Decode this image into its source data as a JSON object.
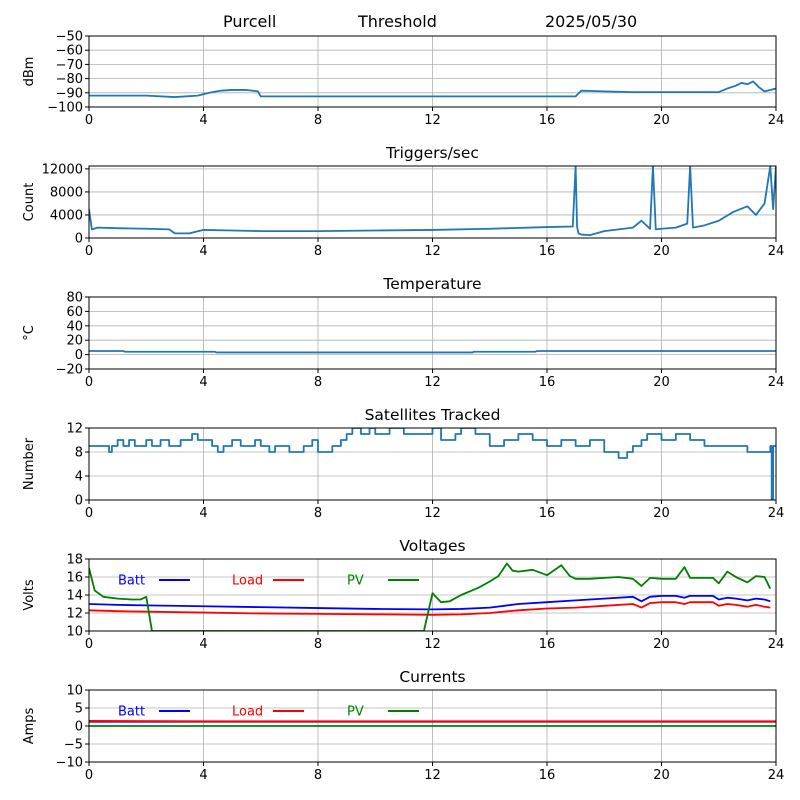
{
  "header": {
    "station": "Purcell",
    "label": "Threshold",
    "date": "2025/05/30"
  },
  "colors": {
    "default_series": "#1f77b4",
    "batt": "#0000ff",
    "load": "#ff0000",
    "pv": "#008000",
    "grid": "#b0b0b0"
  },
  "chart_data": [
    {
      "id": "threshold",
      "type": "line",
      "title": "",
      "xlabel": "",
      "ylabel": "dBm",
      "xlim": [
        0,
        24
      ],
      "ylim": [
        -100,
        -50
      ],
      "xticks": [
        0,
        4,
        8,
        12,
        16,
        20,
        24
      ],
      "yticks": [
        -100,
        -90,
        -80,
        -70,
        -60,
        -50
      ],
      "grid": true,
      "series": [
        {
          "color_key": "default_series",
          "x": [
            0,
            1,
            2,
            3,
            3.8,
            4.2,
            4.6,
            5.0,
            5.5,
            5.9,
            6.0,
            8,
            10,
            12,
            14,
            16.5,
            17.0,
            17.2,
            18,
            19,
            20,
            21,
            22.0,
            22.3,
            22.6,
            22.8,
            23.0,
            23.2,
            23.4,
            23.6,
            23.8,
            24
          ],
          "y": [
            -92,
            -92,
            -92,
            -93,
            -92,
            -90,
            -88.5,
            -88,
            -88,
            -89,
            -92.5,
            -92.5,
            -92.5,
            -92.5,
            -92.5,
            -92.5,
            -92.5,
            -88.5,
            -89,
            -89.5,
            -89.5,
            -89.5,
            -89.5,
            -87,
            -85,
            -83,
            -84,
            -82,
            -86,
            -89,
            -88,
            -87
          ]
        }
      ]
    },
    {
      "id": "triggers",
      "type": "line",
      "title": "Triggers/sec",
      "xlabel": "",
      "ylabel": "Count",
      "xlim": [
        0,
        24
      ],
      "ylim": [
        0,
        12500
      ],
      "xticks": [
        0,
        4,
        8,
        12,
        16,
        20,
        24
      ],
      "yticks": [
        0,
        4000,
        8000,
        12000
      ],
      "grid": true,
      "series": [
        {
          "color_key": "default_series",
          "x": [
            0,
            0.1,
            0.3,
            1.0,
            2.0,
            2.8,
            3.0,
            3.5,
            4.0,
            5.0,
            6.0,
            8.0,
            10.0,
            12.0,
            14.0,
            16.0,
            16.9,
            17.0,
            17.05,
            17.1,
            17.2,
            17.5,
            18.0,
            18.5,
            19.0,
            19.3,
            19.6,
            19.7,
            19.8,
            20.0,
            20.5,
            20.9,
            21.0,
            21.1,
            21.5,
            22.0,
            22.5,
            23.0,
            23.3,
            23.6,
            23.8,
            23.9,
            24
          ],
          "y": [
            5000,
            1500,
            1800,
            1700,
            1600,
            1500,
            800,
            800,
            1400,
            1300,
            1200,
            1200,
            1300,
            1400,
            1600,
            1900,
            2000,
            12500,
            2000,
            800,
            600,
            500,
            1200,
            1500,
            1800,
            3000,
            1600,
            12500,
            1500,
            1600,
            1800,
            2500,
            12500,
            1800,
            2200,
            3000,
            4500,
            5500,
            4000,
            6000,
            12500,
            5000,
            12500
          ]
        }
      ]
    },
    {
      "id": "temperature",
      "type": "line",
      "title": "Temperature",
      "xlabel": "",
      "ylabel": "°C",
      "xlim": [
        0,
        24
      ],
      "ylim": [
        -20,
        80
      ],
      "xticks": [
        0,
        4,
        8,
        12,
        16,
        20,
        24
      ],
      "yticks": [
        -20,
        0,
        20,
        40,
        60,
        80
      ],
      "grid": true,
      "series": [
        {
          "color_key": "default_series",
          "x": [
            0,
            1.2,
            1.25,
            4.4,
            4.45,
            13.4,
            13.45,
            15.6,
            15.65,
            24
          ],
          "y": [
            5,
            5,
            4,
            4,
            3,
            3,
            4,
            4,
            5,
            5
          ]
        }
      ]
    },
    {
      "id": "satellites",
      "type": "line",
      "title": "Satellites Tracked",
      "xlabel": "",
      "ylabel": "Number",
      "xlim": [
        0,
        24
      ],
      "ylim": [
        0,
        12
      ],
      "xticks": [
        0,
        4,
        8,
        12,
        16,
        20,
        24
      ],
      "yticks": [
        0,
        4,
        8,
        12
      ],
      "grid": true,
      "series": [
        {
          "color_key": "default_series",
          "step": true,
          "x": [
            0,
            0.5,
            0.7,
            0.8,
            1.0,
            1.2,
            1.4,
            1.6,
            2.0,
            2.2,
            2.5,
            2.8,
            3.2,
            3.6,
            3.8,
            4.0,
            4.3,
            4.5,
            4.7,
            5.0,
            5.3,
            5.8,
            6.0,
            6.3,
            6.5,
            7.0,
            7.5,
            7.8,
            8.0,
            8.5,
            8.8,
            9.0,
            9.2,
            9.5,
            9.8,
            10.0,
            10.5,
            11.0,
            11.5,
            12.0,
            12.3,
            12.8,
            13.0,
            13.5,
            14.0,
            14.5,
            15.0,
            15.5,
            16.0,
            16.5,
            17.0,
            17.5,
            18.0,
            18.5,
            18.8,
            19.0,
            19.3,
            19.5,
            20.0,
            20.5,
            21.0,
            21.5,
            22.0,
            22.5,
            23.0,
            23.5,
            23.8,
            23.85,
            23.9,
            24
          ],
          "y": [
            9,
            9,
            8,
            9,
            10,
            9,
            10,
            9,
            10,
            9,
            10,
            9,
            10,
            11,
            10,
            10,
            9,
            8,
            9,
            10,
            9,
            10,
            9,
            8,
            9,
            8,
            9,
            10,
            8,
            9,
            10,
            11,
            12,
            11,
            12,
            11,
            12,
            11,
            11,
            12,
            10,
            11,
            12,
            11,
            9,
            10,
            11,
            10,
            9,
            10,
            9,
            10,
            8,
            7,
            8,
            9,
            10,
            11,
            10,
            11,
            10,
            9,
            9,
            9,
            8,
            8,
            9,
            0,
            9,
            9
          ]
        }
      ]
    },
    {
      "id": "voltages",
      "type": "line",
      "title": "Voltages",
      "xlabel": "",
      "ylabel": "Volts",
      "xlim": [
        0,
        24
      ],
      "ylim": [
        10,
        18
      ],
      "xticks": [
        0,
        4,
        8,
        12,
        16,
        20,
        24
      ],
      "yticks": [
        10,
        12,
        14,
        16,
        18
      ],
      "grid": true,
      "legend": "top-left inline",
      "series": [
        {
          "name": "Batt",
          "color_key": "batt",
          "x": [
            0,
            1,
            2,
            4,
            6,
            8,
            10,
            12,
            13,
            14,
            15,
            16,
            17,
            18,
            19,
            19.3,
            19.6,
            20,
            20.5,
            20.8,
            21.0,
            21.5,
            21.8,
            22.0,
            22.3,
            22.6,
            23.0,
            23.3,
            23.6,
            23.8
          ],
          "y": [
            13.0,
            12.9,
            12.85,
            12.75,
            12.65,
            12.55,
            12.45,
            12.4,
            12.45,
            12.6,
            13.0,
            13.2,
            13.4,
            13.6,
            13.8,
            13.3,
            13.8,
            13.9,
            13.9,
            13.7,
            13.9,
            13.9,
            13.9,
            13.5,
            13.7,
            13.6,
            13.4,
            13.6,
            13.5,
            13.3
          ]
        },
        {
          "name": "Load",
          "color_key": "load",
          "x": [
            0,
            1,
            2,
            4,
            6,
            8,
            10,
            12,
            13,
            14,
            15,
            16,
            17,
            18,
            19,
            19.3,
            19.6,
            20,
            20.5,
            20.8,
            21.0,
            21.5,
            21.8,
            22.0,
            22.3,
            22.6,
            23.0,
            23.3,
            23.6,
            23.8
          ],
          "y": [
            12.3,
            12.2,
            12.15,
            12.05,
            11.95,
            11.9,
            11.85,
            11.8,
            11.85,
            12.0,
            12.3,
            12.5,
            12.6,
            12.8,
            13.0,
            12.6,
            13.1,
            13.2,
            13.2,
            13.0,
            13.2,
            13.2,
            13.2,
            12.8,
            13.0,
            12.9,
            12.7,
            12.9,
            12.7,
            12.6
          ]
        },
        {
          "name": "PV",
          "color_key": "pv",
          "x": [
            0,
            0.2,
            0.5,
            1.0,
            1.5,
            1.8,
            2.0,
            2.2,
            11.7,
            12.0,
            12.3,
            12.6,
            13.0,
            13.3,
            13.6,
            14.0,
            14.3,
            14.6,
            14.8,
            15.0,
            15.5,
            16.0,
            16.5,
            16.8,
            17.0,
            17.5,
            18.0,
            18.5,
            19.0,
            19.3,
            19.6,
            20.0,
            20.5,
            20.8,
            21.0,
            21.5,
            21.8,
            22.0,
            22.3,
            22.6,
            23.0,
            23.3,
            23.6,
            23.8
          ],
          "y": [
            17.0,
            14.5,
            13.8,
            13.6,
            13.5,
            13.5,
            13.8,
            10,
            10,
            14.2,
            13.2,
            13.3,
            14.0,
            14.4,
            14.8,
            15.5,
            16.1,
            17.5,
            16.7,
            16.6,
            16.8,
            16.2,
            17.3,
            16.1,
            15.8,
            15.8,
            15.9,
            16.0,
            15.8,
            15.0,
            15.9,
            15.8,
            15.8,
            17.1,
            15.9,
            15.9,
            15.9,
            15.3,
            16.6,
            16.0,
            15.4,
            16.1,
            16.0,
            14.7
          ]
        }
      ]
    },
    {
      "id": "currents",
      "type": "line",
      "title": "Currents",
      "xlabel": "",
      "ylabel": "Amps",
      "xlim": [
        0,
        24
      ],
      "ylim": [
        -10,
        10
      ],
      "xticks": [
        0,
        4,
        8,
        12,
        16,
        20,
        24
      ],
      "yticks": [
        -10,
        -5,
        0,
        5,
        10
      ],
      "grid": true,
      "legend": "top-left inline",
      "series": [
        {
          "name": "Batt",
          "color_key": "batt",
          "x": [
            0,
            24
          ],
          "y": [
            1.2,
            1.2
          ]
        },
        {
          "name": "Load",
          "color_key": "load",
          "x": [
            0,
            4,
            8,
            12,
            16,
            20,
            24
          ],
          "y": [
            1.4,
            1.3,
            1.3,
            1.3,
            1.3,
            1.3,
            1.3
          ]
        },
        {
          "name": "PV",
          "color_key": "pv",
          "x": [
            0,
            24
          ],
          "y": [
            0,
            0
          ]
        }
      ]
    }
  ]
}
